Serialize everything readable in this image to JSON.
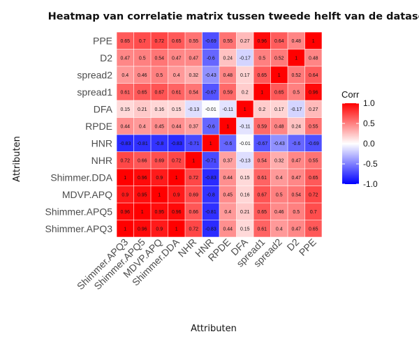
{
  "chart_data": {
    "type": "heatmap",
    "title": "Heatmap van correlatie matrix tussen tweede helft van de dataset",
    "xlabel": "Attributen",
    "ylabel": "Attributen",
    "x": [
      "Shimmer.APQ3",
      "Shimmer.APQ5",
      "MDVP.APQ",
      "Shimmer.DDA",
      "NHR",
      "HNR",
      "RPDE",
      "DFA",
      "spread1",
      "spread2",
      "D2",
      "PPE"
    ],
    "y": [
      "PPE",
      "D2",
      "spread2",
      "spread1",
      "DFA",
      "RPDE",
      "HNR",
      "NHR",
      "Shimmer.DDA",
      "MDVP.APQ",
      "Shimmer.APQ5",
      "Shimmer.APQ3"
    ],
    "values": [
      [
        0.65,
        0.7,
        0.72,
        0.65,
        0.55,
        -0.69,
        0.55,
        0.27,
        0.96,
        0.64,
        0.48,
        1
      ],
      [
        0.47,
        0.5,
        0.54,
        0.47,
        0.47,
        -0.6,
        0.24,
        -0.17,
        0.5,
        0.52,
        1,
        0.48
      ],
      [
        0.4,
        0.46,
        0.5,
        0.4,
        0.32,
        -0.43,
        0.48,
        0.17,
        0.65,
        1,
        0.52,
        0.64
      ],
      [
        0.61,
        0.65,
        0.67,
        0.61,
        0.54,
        -0.67,
        0.59,
        0.2,
        1,
        0.65,
        0.5,
        0.96
      ],
      [
        0.15,
        0.21,
        0.16,
        0.15,
        -0.13,
        -0.01,
        -0.11,
        1,
        0.2,
        0.17,
        -0.17,
        0.27
      ],
      [
        0.44,
        0.4,
        0.45,
        0.44,
        0.37,
        -0.6,
        1,
        -0.11,
        0.59,
        0.48,
        0.24,
        0.55
      ],
      [
        -0.83,
        -0.81,
        -0.8,
        -0.83,
        -0.71,
        1,
        -0.6,
        -0.01,
        -0.67,
        -0.43,
        -0.6,
        -0.69
      ],
      [
        0.72,
        0.66,
        0.69,
        0.72,
        1,
        -0.71,
        0.37,
        -0.13,
        0.54,
        0.32,
        0.47,
        0.55
      ],
      [
        1,
        0.96,
        0.9,
        1,
        0.72,
        -0.83,
        0.44,
        0.15,
        0.61,
        0.4,
        0.47,
        0.65
      ],
      [
        0.9,
        0.95,
        1,
        0.9,
        0.69,
        -0.8,
        0.45,
        0.16,
        0.67,
        0.5,
        0.54,
        0.72
      ],
      [
        0.96,
        1,
        0.95,
        0.96,
        0.66,
        -0.81,
        0.4,
        0.21,
        0.65,
        0.46,
        0.5,
        0.7
      ],
      [
        1,
        0.96,
        0.9,
        1,
        0.72,
        -0.83,
        0.44,
        0.15,
        0.61,
        0.4,
        0.47,
        0.65
      ]
    ],
    "value_labels": [
      [
        "0.65",
        "0.7",
        "0.72",
        "0.65",
        "0.55",
        "-0.69",
        "0.55",
        "0.27",
        "0.96",
        "0.64",
        "0.48",
        "1"
      ],
      [
        "0.47",
        "0.5",
        "0.54",
        "0.47",
        "0.47",
        "-0.6",
        "0.24",
        "-0.17",
        "0.5",
        "0.52",
        "1",
        "0.48"
      ],
      [
        "0.4",
        "0.46",
        "0.5",
        "0.4",
        "0.32",
        "-0.43",
        "0.48",
        "0.17",
        "0.65",
        "1",
        "0.52",
        "0.64"
      ],
      [
        "0.61",
        "0.65",
        "0.67",
        "0.61",
        "0.54",
        "-0.67",
        "0.59",
        "0.2",
        "1",
        "0.65",
        "0.5",
        "0.96"
      ],
      [
        "0.15",
        "0.21",
        "0.16",
        "0.15",
        "-0.13",
        "-0.01",
        "-0.11",
        "1",
        "0.2",
        "0.17",
        "-0.17",
        "0.27"
      ],
      [
        "0.44",
        "0.4",
        "0.45",
        "0.44",
        "0.37",
        "-0.6",
        "1",
        "-0.11",
        "0.59",
        "0.48",
        "0.24",
        "0.55"
      ],
      [
        "-0.83",
        "-0.81",
        "-0.8",
        "-0.83",
        "-0.71",
        "1",
        "-0.6",
        "-0.01",
        "-0.67",
        "-0.43",
        "-0.6",
        "-0.69"
      ],
      [
        "0.72",
        "0.66",
        "0.69",
        "0.72",
        "1",
        "-0.71",
        "0.37",
        "-0.13",
        "0.54",
        "0.32",
        "0.47",
        "0.55"
      ],
      [
        "1",
        "0.96",
        "0.9",
        "1",
        "0.72",
        "-0.83",
        "0.44",
        "0.15",
        "0.61",
        "0.4",
        "0.47",
        "0.65"
      ],
      [
        "0.9",
        "0.95",
        "1",
        "0.9",
        "0.69",
        "-0.8",
        "0.45",
        "0.16",
        "0.67",
        "0.5",
        "0.54",
        "0.72"
      ],
      [
        "0.96",
        "1",
        "0.95",
        "0.96",
        "0.66",
        "-0.81",
        "0.4",
        "0.21",
        "0.65",
        "0.46",
        "0.5",
        "0.7"
      ],
      [
        "1",
        "0.96",
        "0.9",
        "1",
        "0.72",
        "-0.83",
        "0.44",
        "0.15",
        "0.61",
        "0.4",
        "0.47",
        "0.65"
      ]
    ],
    "color_scale": {
      "low": "#0000ff",
      "mid": "#ffffff",
      "high": "#ff0000",
      "range": [
        -1,
        1
      ]
    },
    "legend": {
      "title": "Corr",
      "placement": "right",
      "ticks": [
        1.0,
        0.5,
        0.0,
        -0.5,
        -1.0
      ],
      "tick_labels": [
        "1.0",
        "0.5",
        "0.0",
        "-0.5",
        "-1.0"
      ]
    },
    "grid": false
  }
}
